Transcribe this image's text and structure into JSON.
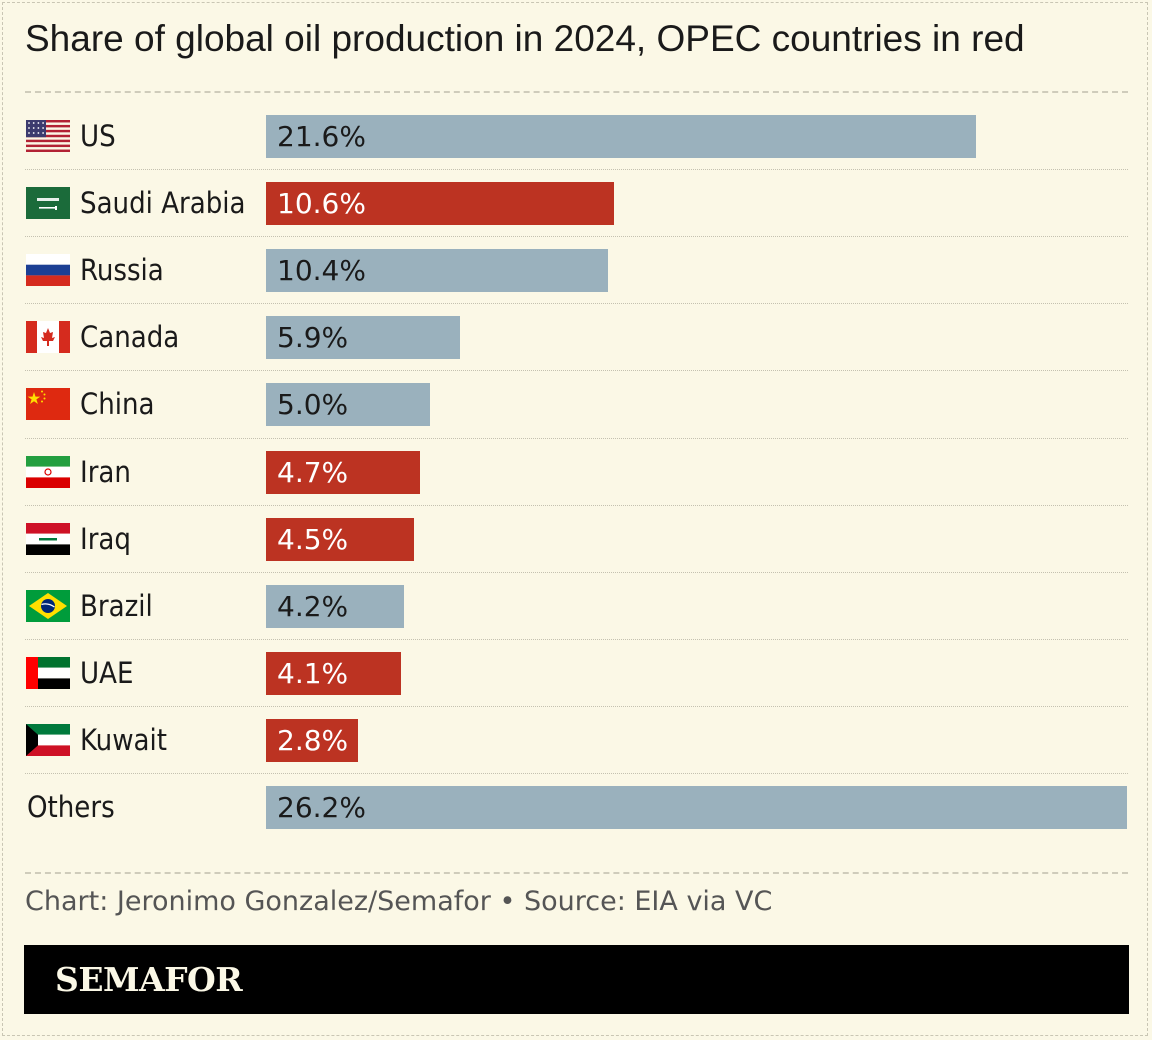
{
  "title": "Share of global oil production in 2024, OPEC countries in red",
  "footer": {
    "credit": "Chart: Jeronimo Gonzalez/Semafor • Source: EIA via VC"
  },
  "brand": {
    "logo_text": "SEMAFOR"
  },
  "colors": {
    "background": "#fbf8e6",
    "opec": "#bc3322",
    "non_opec": "#9ab1bd",
    "brand_bar": "#000000"
  },
  "chart_data": {
    "type": "bar",
    "orientation": "horizontal",
    "title": "Share of global oil production in 2024, OPEC countries in red",
    "xlim": [
      0,
      26.2
    ],
    "unit": "%",
    "grid": false,
    "legend": "none",
    "categories": [
      "US",
      "Saudi Arabia",
      "Russia",
      "Canada",
      "China",
      "Iran",
      "Iraq",
      "Brazil",
      "UAE",
      "Kuwait",
      "Others"
    ],
    "values": [
      21.6,
      10.6,
      10.4,
      5.9,
      5.0,
      4.7,
      4.5,
      4.2,
      4.1,
      2.8,
      26.2
    ],
    "labels": [
      "21.6%",
      "10.6%",
      "10.4%",
      "5.9%",
      "5.0%",
      "4.7%",
      "4.5%",
      "4.2%",
      "4.1%",
      "2.8%",
      "26.2%"
    ],
    "opec": [
      false,
      true,
      false,
      false,
      false,
      true,
      true,
      false,
      true,
      true,
      false
    ],
    "flags": [
      "us-flag-icon",
      "saudi-arabia-flag-icon",
      "russia-flag-icon",
      "canada-flag-icon",
      "china-flag-icon",
      "iran-flag-icon",
      "iraq-flag-icon",
      "brazil-flag-icon",
      "uae-flag-icon",
      "kuwait-flag-icon",
      ""
    ]
  }
}
